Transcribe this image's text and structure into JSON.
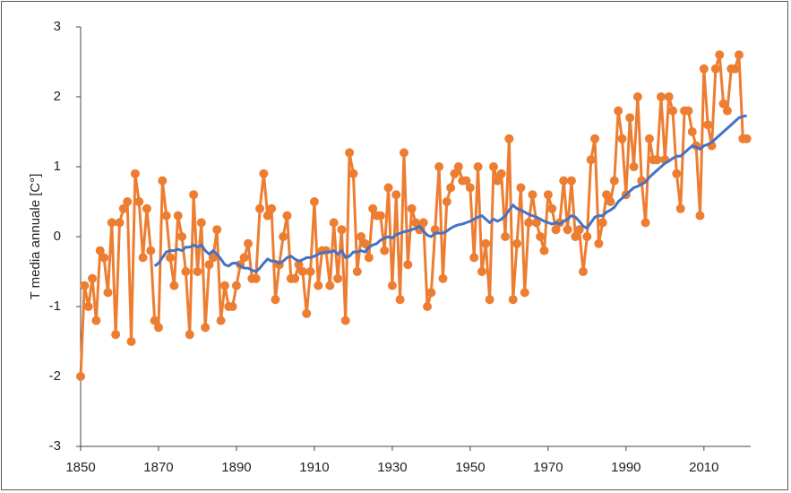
{
  "chart_data": {
    "type": "line",
    "y_label": "T media annuale [C°]",
    "x": [
      1850,
      1851,
      1852,
      1853,
      1854,
      1855,
      1856,
      1857,
      1858,
      1859,
      1860,
      1861,
      1862,
      1863,
      1864,
      1865,
      1866,
      1867,
      1868,
      1869,
      1870,
      1871,
      1872,
      1873,
      1874,
      1875,
      1876,
      1877,
      1878,
      1879,
      1880,
      1881,
      1882,
      1883,
      1884,
      1885,
      1886,
      1887,
      1888,
      1889,
      1890,
      1891,
      1892,
      1893,
      1894,
      1895,
      1896,
      1897,
      1898,
      1899,
      1900,
      1901,
      1902,
      1903,
      1904,
      1905,
      1906,
      1907,
      1908,
      1909,
      1910,
      1911,
      1912,
      1913,
      1914,
      1915,
      1916,
      1917,
      1918,
      1919,
      1920,
      1921,
      1922,
      1923,
      1924,
      1925,
      1926,
      1927,
      1928,
      1929,
      1930,
      1931,
      1932,
      1933,
      1934,
      1935,
      1936,
      1937,
      1938,
      1939,
      1940,
      1941,
      1942,
      1943,
      1944,
      1945,
      1946,
      1947,
      1948,
      1949,
      1950,
      1951,
      1952,
      1953,
      1954,
      1955,
      1956,
      1957,
      1958,
      1959,
      1960,
      1961,
      1962,
      1963,
      1964,
      1965,
      1966,
      1967,
      1968,
      1969,
      1970,
      1971,
      1972,
      1973,
      1974,
      1975,
      1976,
      1977,
      1978,
      1979,
      1980,
      1981,
      1982,
      1983,
      1984,
      1985,
      1986,
      1987,
      1988,
      1989,
      1990,
      1991,
      1992,
      1993,
      1994,
      1995,
      1996,
      1997,
      1998,
      1999,
      2000,
      2001,
      2002,
      2003,
      2004,
      2005,
      2006,
      2007,
      2008,
      2009,
      2010,
      2011,
      2012,
      2013,
      2014,
      2015,
      2016,
      2017,
      2018,
      2019,
      2020,
      2021
    ],
    "series": [
      {
        "color": "#ed7d31",
        "markers": true,
        "values": [
          -2.0,
          -0.7,
          -1.0,
          -0.6,
          -1.2,
          -0.2,
          -0.3,
          -0.8,
          0.2,
          -1.4,
          0.2,
          0.4,
          0.5,
          -1.5,
          0.9,
          0.5,
          -0.3,
          0.4,
          -0.2,
          -1.2,
          -1.3,
          0.8,
          0.3,
          -0.3,
          -0.7,
          0.3,
          0.0,
          -0.5,
          -1.4,
          0.6,
          -0.5,
          0.2,
          -1.3,
          -0.4,
          -0.3,
          0.1,
          -1.2,
          -0.7,
          -1.0,
          -1.0,
          -0.7,
          -0.4,
          -0.3,
          -0.1,
          -0.6,
          -0.6,
          0.4,
          0.9,
          0.3,
          0.4,
          -0.9,
          -0.4,
          0.0,
          0.3,
          -0.6,
          -0.6,
          -0.4,
          -0.5,
          -1.1,
          -0.5,
          0.5,
          -0.7,
          -0.2,
          -0.2,
          -0.7,
          0.2,
          -0.6,
          0.1,
          -1.2,
          1.2,
          0.9,
          -0.5,
          0.0,
          -0.1,
          -0.3,
          0.4,
          0.3,
          0.3,
          -0.2,
          0.7,
          -0.7,
          0.6,
          -0.9,
          1.2,
          -0.4,
          0.4,
          0.2,
          0.1,
          0.2,
          -1.0,
          -0.8,
          0.1,
          1.0,
          -0.6,
          0.5,
          0.7,
          0.9,
          1.0,
          0.8,
          0.8,
          0.7,
          -0.3,
          1.0,
          -0.5,
          -0.1,
          -0.9,
          1.0,
          0.8,
          0.9,
          0.0,
          1.4,
          -0.9,
          -0.1,
          0.7,
          -0.8,
          0.2,
          0.6,
          0.2,
          0.0,
          -0.2,
          0.6,
          0.4,
          0.1,
          0.2,
          0.8,
          0.1,
          0.8,
          0.0,
          0.1,
          -0.5,
          0.0,
          1.1,
          1.4,
          -0.1,
          0.2,
          0.6,
          0.5,
          0.8,
          1.8,
          1.4,
          0.6,
          1.7,
          1.0,
          2.0,
          0.8,
          0.2,
          1.4,
          1.1,
          1.1,
          2.0,
          1.1,
          2.0,
          1.8,
          0.9,
          0.4,
          1.8,
          1.8,
          1.5,
          1.3,
          0.3,
          2.4,
          1.6,
          1.3,
          2.4,
          2.6,
          1.9,
          1.8,
          2.4,
          2.4,
          2.6,
          1.4,
          1.4
        ]
      },
      {
        "color": "#4472c4",
        "markers": false,
        "values": [
          null,
          null,
          null,
          null,
          null,
          null,
          null,
          null,
          null,
          null,
          null,
          null,
          null,
          null,
          null,
          null,
          null,
          null,
          null,
          -0.42,
          -0.38,
          -0.3,
          -0.22,
          -0.2,
          -0.2,
          -0.18,
          -0.2,
          -0.15,
          -0.15,
          -0.12,
          -0.15,
          -0.12,
          -0.2,
          -0.25,
          -0.2,
          -0.25,
          -0.32,
          -0.4,
          -0.42,
          -0.38,
          -0.38,
          -0.42,
          -0.45,
          -0.45,
          -0.48,
          -0.5,
          -0.45,
          -0.38,
          -0.32,
          -0.35,
          -0.35,
          -0.38,
          -0.35,
          -0.3,
          -0.28,
          -0.32,
          -0.35,
          -0.33,
          -0.3,
          -0.3,
          -0.28,
          -0.25,
          -0.23,
          -0.22,
          -0.22,
          -0.2,
          -0.25,
          -0.2,
          -0.3,
          -0.28,
          -0.22,
          -0.22,
          -0.2,
          -0.22,
          -0.15,
          -0.12,
          -0.1,
          -0.05,
          -0.02,
          0.0,
          -0.02,
          0.03,
          0.05,
          0.07,
          0.08,
          0.1,
          0.12,
          0.15,
          0.08,
          0.02,
          0.0,
          0.05,
          0.05,
          0.05,
          0.08,
          0.12,
          0.15,
          0.17,
          0.18,
          0.2,
          0.22,
          0.25,
          0.28,
          0.3,
          0.25,
          0.2,
          0.25,
          0.22,
          0.25,
          0.3,
          0.38,
          0.45,
          0.4,
          0.38,
          0.35,
          0.32,
          0.3,
          0.28,
          0.25,
          0.22,
          0.2,
          0.18,
          0.2,
          0.18,
          0.22,
          0.25,
          0.3,
          0.28,
          0.22,
          0.15,
          0.12,
          0.2,
          0.28,
          0.3,
          0.3,
          0.35,
          0.38,
          0.42,
          0.5,
          0.55,
          0.6,
          0.65,
          0.7,
          0.72,
          0.75,
          0.78,
          0.85,
          0.9,
          0.95,
          1.0,
          1.05,
          1.08,
          1.12,
          1.15,
          1.15,
          1.2,
          1.25,
          1.3,
          1.28,
          1.25,
          1.3,
          1.32,
          1.35,
          1.4,
          1.45,
          1.5,
          1.55,
          1.6,
          1.65,
          1.7,
          1.72,
          1.73
        ]
      }
    ],
    "xlim": [
      1850,
      2022
    ],
    "xticks": [
      1850,
      1870,
      1890,
      1910,
      1930,
      1950,
      1970,
      1990,
      2010
    ],
    "ylim": [
      -3,
      3
    ],
    "yticks": [
      -3,
      -2,
      -1,
      0,
      1,
      2,
      3
    ],
    "grid": false
  }
}
